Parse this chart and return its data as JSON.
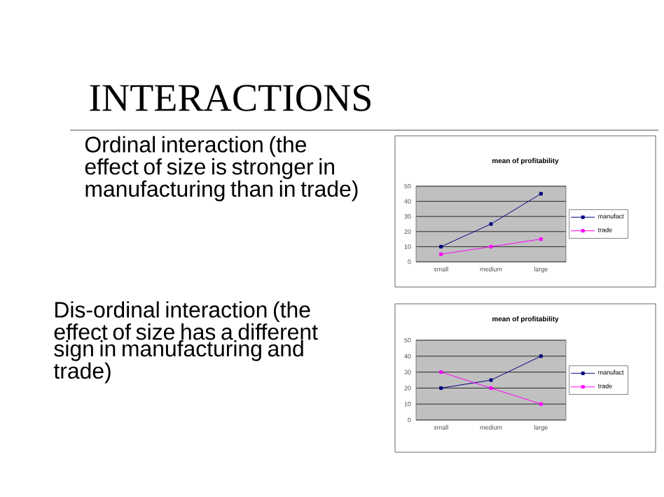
{
  "chart_data": [
    {
      "type": "line",
      "title": "mean of profitability",
      "categories": [
        "small",
        "medium",
        "large"
      ],
      "series": [
        {
          "name": "manufact",
          "color": "#000080",
          "values": [
            10,
            25,
            45
          ]
        },
        {
          "name": "trade",
          "color": "#ff00ff",
          "values": [
            5,
            10,
            15
          ]
        }
      ],
      "ylim": [
        0,
        50
      ],
      "yticks": [
        0,
        10,
        20,
        30,
        40,
        50
      ],
      "grid": "y",
      "legend": "right",
      "marker": "square",
      "annotations": [
        "INTERACTIONS",
        "Ordinal interaction (the effect of size is stronger in manufacturing than in trade)"
      ]
    },
    {
      "type": "line",
      "title": "mean of profitability",
      "categories": [
        "small",
        "medium",
        "large"
      ],
      "series": [
        {
          "name": "manufact",
          "color": "#000080",
          "values": [
            20,
            25,
            40
          ]
        },
        {
          "name": "trade",
          "color": "#ff00ff",
          "values": [
            30,
            20,
            10
          ]
        }
      ],
      "ylim": [
        0,
        50
      ],
      "yticks": [
        0,
        10,
        20,
        30,
        40,
        50
      ],
      "grid": "y",
      "legend": "right",
      "marker": "square",
      "annotations": [
        "Dis-ordinal interaction (the effect of size has a different sign in manufacturing and trade)"
      ]
    }
  ]
}
